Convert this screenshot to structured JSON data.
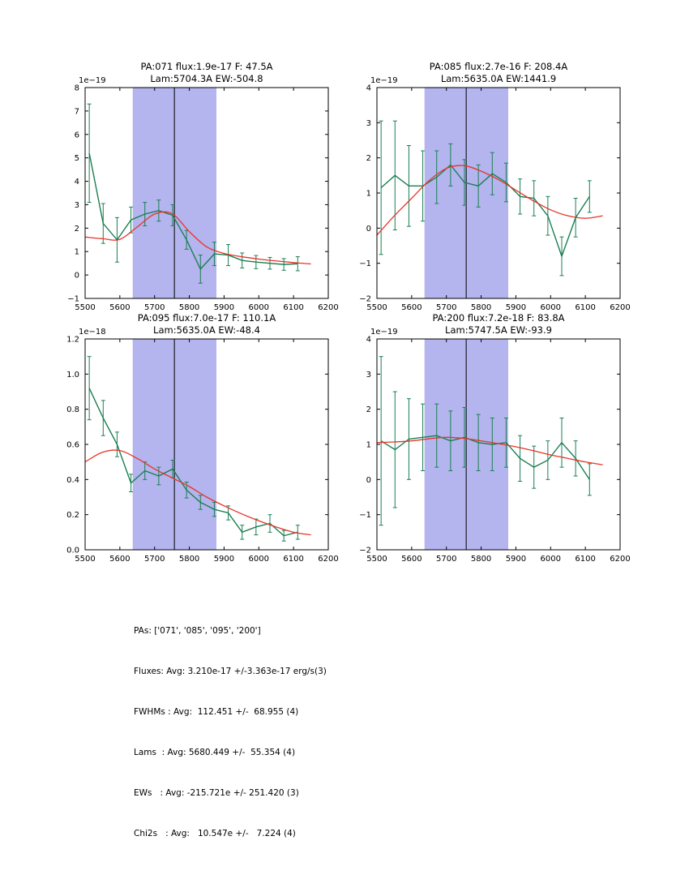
{
  "colors": {
    "data": "#1a7f52",
    "fit": "#e6352b",
    "band": "#b4b4ee",
    "vline": "#000000",
    "frame": "#000000",
    "background": "#ffffff"
  },
  "summary": {
    "lines": [
      "PAs: ['071', '085', '095', '200']",
      "Fluxes: Avg: 3.210e-17 +/-3.363e-17 erg/s(3)",
      "FWHMs : Avg:  112.451 +/-  68.955 (4)",
      "Lams  : Avg: 5680.449 +/-  55.354 (4)",
      "EWs   : Avg: -215.721e +/- 251.420 (3)",
      "Chi2s   : Avg:   10.547e +/-   7.224 (4)"
    ]
  },
  "chart_data": [
    {
      "type": "line",
      "name": "PA071",
      "title_line1": "PA:071 flux:1.9e-17 F: 47.5A",
      "title_line2": "Lam:5704.3A EW:-504.8",
      "offset_label": "1e−19",
      "xlim": [
        5500,
        6200
      ],
      "ylim": [
        -1,
        8
      ],
      "xtick_values": [
        5500,
        5600,
        5700,
        5800,
        5900,
        6000,
        6100,
        6200
      ],
      "xtick_labels": [
        "5500",
        "5600",
        "5700",
        "5800",
        "5900",
        "6000",
        "6100",
        "6200"
      ],
      "ytick_values": [
        -1,
        0,
        1,
        2,
        3,
        4,
        5,
        6,
        7,
        8
      ],
      "ytick_labels": [
        "−1",
        "0",
        "1",
        "2",
        "3",
        "4",
        "5",
        "6",
        "7",
        "8"
      ],
      "band": [
        5637,
        5878
      ],
      "vline": 5757,
      "series": [
        {
          "name": "spectrum",
          "x": [
            5512,
            5552,
            5592,
            5632,
            5672,
            5712,
            5752,
            5792,
            5832,
            5872,
            5912,
            5952,
            5992,
            6032,
            6072,
            6112
          ],
          "y": [
            5.2,
            2.2,
            1.5,
            2.35,
            2.6,
            2.75,
            2.55,
            1.5,
            0.25,
            0.9,
            0.85,
            0.62,
            0.55,
            0.5,
            0.45,
            0.48
          ],
          "yerr": [
            2.1,
            0.85,
            0.95,
            0.55,
            0.5,
            0.45,
            0.45,
            0.4,
            0.6,
            0.5,
            0.45,
            0.32,
            0.28,
            0.25,
            0.25,
            0.3
          ]
        },
        {
          "name": "gaussian-fit",
          "x": [
            5500,
            5550,
            5600,
            5650,
            5700,
            5750,
            5800,
            5850,
            5900,
            5950,
            6000,
            6050,
            6100,
            6150
          ],
          "y": [
            1.62,
            1.55,
            1.52,
            2.05,
            2.6,
            2.62,
            1.85,
            1.2,
            0.92,
            0.78,
            0.68,
            0.6,
            0.53,
            0.47
          ]
        }
      ]
    },
    {
      "type": "line",
      "name": "PA085",
      "title_line1": "PA:085 flux:2.7e-16 F: 208.4A",
      "title_line2": "Lam:5635.0A EW:1441.9",
      "offset_label": "1e−19",
      "xlim": [
        5500,
        6200
      ],
      "ylim": [
        -2,
        4
      ],
      "xtick_values": [
        5500,
        5600,
        5700,
        5800,
        5900,
        6000,
        6100,
        6200
      ],
      "xtick_labels": [
        "5500",
        "5600",
        "5700",
        "5800",
        "5900",
        "6000",
        "6100",
        "6200"
      ],
      "ytick_values": [
        -2,
        -1,
        0,
        1,
        2,
        3,
        4
      ],
      "ytick_labels": [
        "−2",
        "−1",
        "0",
        "1",
        "2",
        "3",
        "4"
      ],
      "band": [
        5637,
        5878
      ],
      "vline": 5757,
      "series": [
        {
          "name": "spectrum",
          "x": [
            5512,
            5552,
            5592,
            5632,
            5672,
            5712,
            5752,
            5792,
            5832,
            5872,
            5912,
            5952,
            5992,
            6032,
            6072,
            6112
          ],
          "y": [
            1.15,
            1.5,
            1.2,
            1.2,
            1.45,
            1.8,
            1.3,
            1.2,
            1.55,
            1.3,
            0.9,
            0.85,
            0.35,
            -0.8,
            0.3,
            0.9
          ],
          "yerr": [
            1.9,
            1.55,
            1.15,
            1.0,
            0.75,
            0.6,
            0.65,
            0.6,
            0.6,
            0.55,
            0.5,
            0.5,
            0.55,
            0.55,
            0.55,
            0.45
          ]
        },
        {
          "name": "gaussian-fit",
          "x": [
            5500,
            5550,
            5600,
            5650,
            5700,
            5750,
            5800,
            5850,
            5900,
            5950,
            6000,
            6050,
            6100,
            6150
          ],
          "y": [
            -0.2,
            0.35,
            0.85,
            1.35,
            1.7,
            1.78,
            1.62,
            1.38,
            1.08,
            0.78,
            0.52,
            0.35,
            0.28,
            0.35
          ]
        }
      ]
    },
    {
      "type": "line",
      "name": "PA095",
      "title_line1": "PA:095 flux:7.0e-17 F: 110.1A",
      "title_line2": "Lam:5635.0A EW:-48.4",
      "offset_label": "1e−18",
      "xlim": [
        5500,
        6200
      ],
      "ylim": [
        0,
        1.2
      ],
      "xtick_values": [
        5500,
        5600,
        5700,
        5800,
        5900,
        6000,
        6100,
        6200
      ],
      "xtick_labels": [
        "5500",
        "5600",
        "5700",
        "5800",
        "5900",
        "6000",
        "6100",
        "6200"
      ],
      "ytick_values": [
        0,
        0.2,
        0.4,
        0.6,
        0.8,
        1.0,
        1.2
      ],
      "ytick_labels": [
        "0.0",
        "0.2",
        "0.4",
        "0.6",
        "0.8",
        "1.0",
        "1.2"
      ],
      "band": [
        5637,
        5878
      ],
      "vline": 5757,
      "series": [
        {
          "name": "spectrum",
          "x": [
            5512,
            5552,
            5592,
            5632,
            5672,
            5712,
            5752,
            5792,
            5832,
            5872,
            5912,
            5952,
            5992,
            6032,
            6072,
            6112
          ],
          "y": [
            0.92,
            0.75,
            0.6,
            0.38,
            0.45,
            0.42,
            0.46,
            0.34,
            0.27,
            0.23,
            0.21,
            0.1,
            0.13,
            0.15,
            0.08,
            0.1
          ],
          "yerr": [
            0.18,
            0.1,
            0.07,
            0.05,
            0.05,
            0.05,
            0.05,
            0.045,
            0.04,
            0.04,
            0.04,
            0.04,
            0.045,
            0.05,
            0.03,
            0.04
          ]
        },
        {
          "name": "gaussian-fit",
          "x": [
            5500,
            5550,
            5600,
            5650,
            5700,
            5750,
            5800,
            5850,
            5900,
            5950,
            6000,
            6050,
            6100,
            6150
          ],
          "y": [
            0.5,
            0.555,
            0.565,
            0.52,
            0.46,
            0.41,
            0.36,
            0.3,
            0.25,
            0.205,
            0.165,
            0.13,
            0.1,
            0.085
          ]
        }
      ]
    },
    {
      "type": "line",
      "name": "PA200",
      "title_line1": "PA:200 flux:7.2e-18 F: 83.8A",
      "title_line2": "Lam:5747.5A EW:-93.9",
      "offset_label": "1e−19",
      "xlim": [
        5500,
        6200
      ],
      "ylim": [
        -2,
        4
      ],
      "xtick_values": [
        5500,
        5600,
        5700,
        5800,
        5900,
        6000,
        6100,
        6200
      ],
      "xtick_labels": [
        "5500",
        "5600",
        "5700",
        "5800",
        "5900",
        "6000",
        "6100",
        "6200"
      ],
      "ytick_values": [
        -2,
        -1,
        0,
        1,
        2,
        3,
        4
      ],
      "ytick_labels": [
        "−2",
        "−1",
        "0",
        "1",
        "2",
        "3",
        "4"
      ],
      "band": [
        5637,
        5878
      ],
      "vline": 5757,
      "series": [
        {
          "name": "spectrum",
          "x": [
            5512,
            5552,
            5592,
            5632,
            5672,
            5712,
            5752,
            5792,
            5832,
            5872,
            5912,
            5952,
            5992,
            6032,
            6072,
            6112
          ],
          "y": [
            1.1,
            0.85,
            1.15,
            1.2,
            1.25,
            1.1,
            1.2,
            1.05,
            1.0,
            1.05,
            0.6,
            0.35,
            0.55,
            1.05,
            0.6,
            0.0
          ],
          "yerr": [
            2.4,
            1.65,
            1.15,
            0.95,
            0.9,
            0.85,
            0.85,
            0.8,
            0.75,
            0.7,
            0.65,
            0.6,
            0.55,
            0.7,
            0.5,
            0.45
          ]
        },
        {
          "name": "gaussian-fit",
          "x": [
            5500,
            5550,
            5600,
            5650,
            5700,
            5750,
            5800,
            5850,
            5900,
            5950,
            6000,
            6050,
            6100,
            6150
          ],
          "y": [
            1.05,
            1.07,
            1.1,
            1.16,
            1.2,
            1.17,
            1.1,
            1.02,
            0.93,
            0.82,
            0.7,
            0.6,
            0.5,
            0.42
          ]
        }
      ]
    }
  ]
}
